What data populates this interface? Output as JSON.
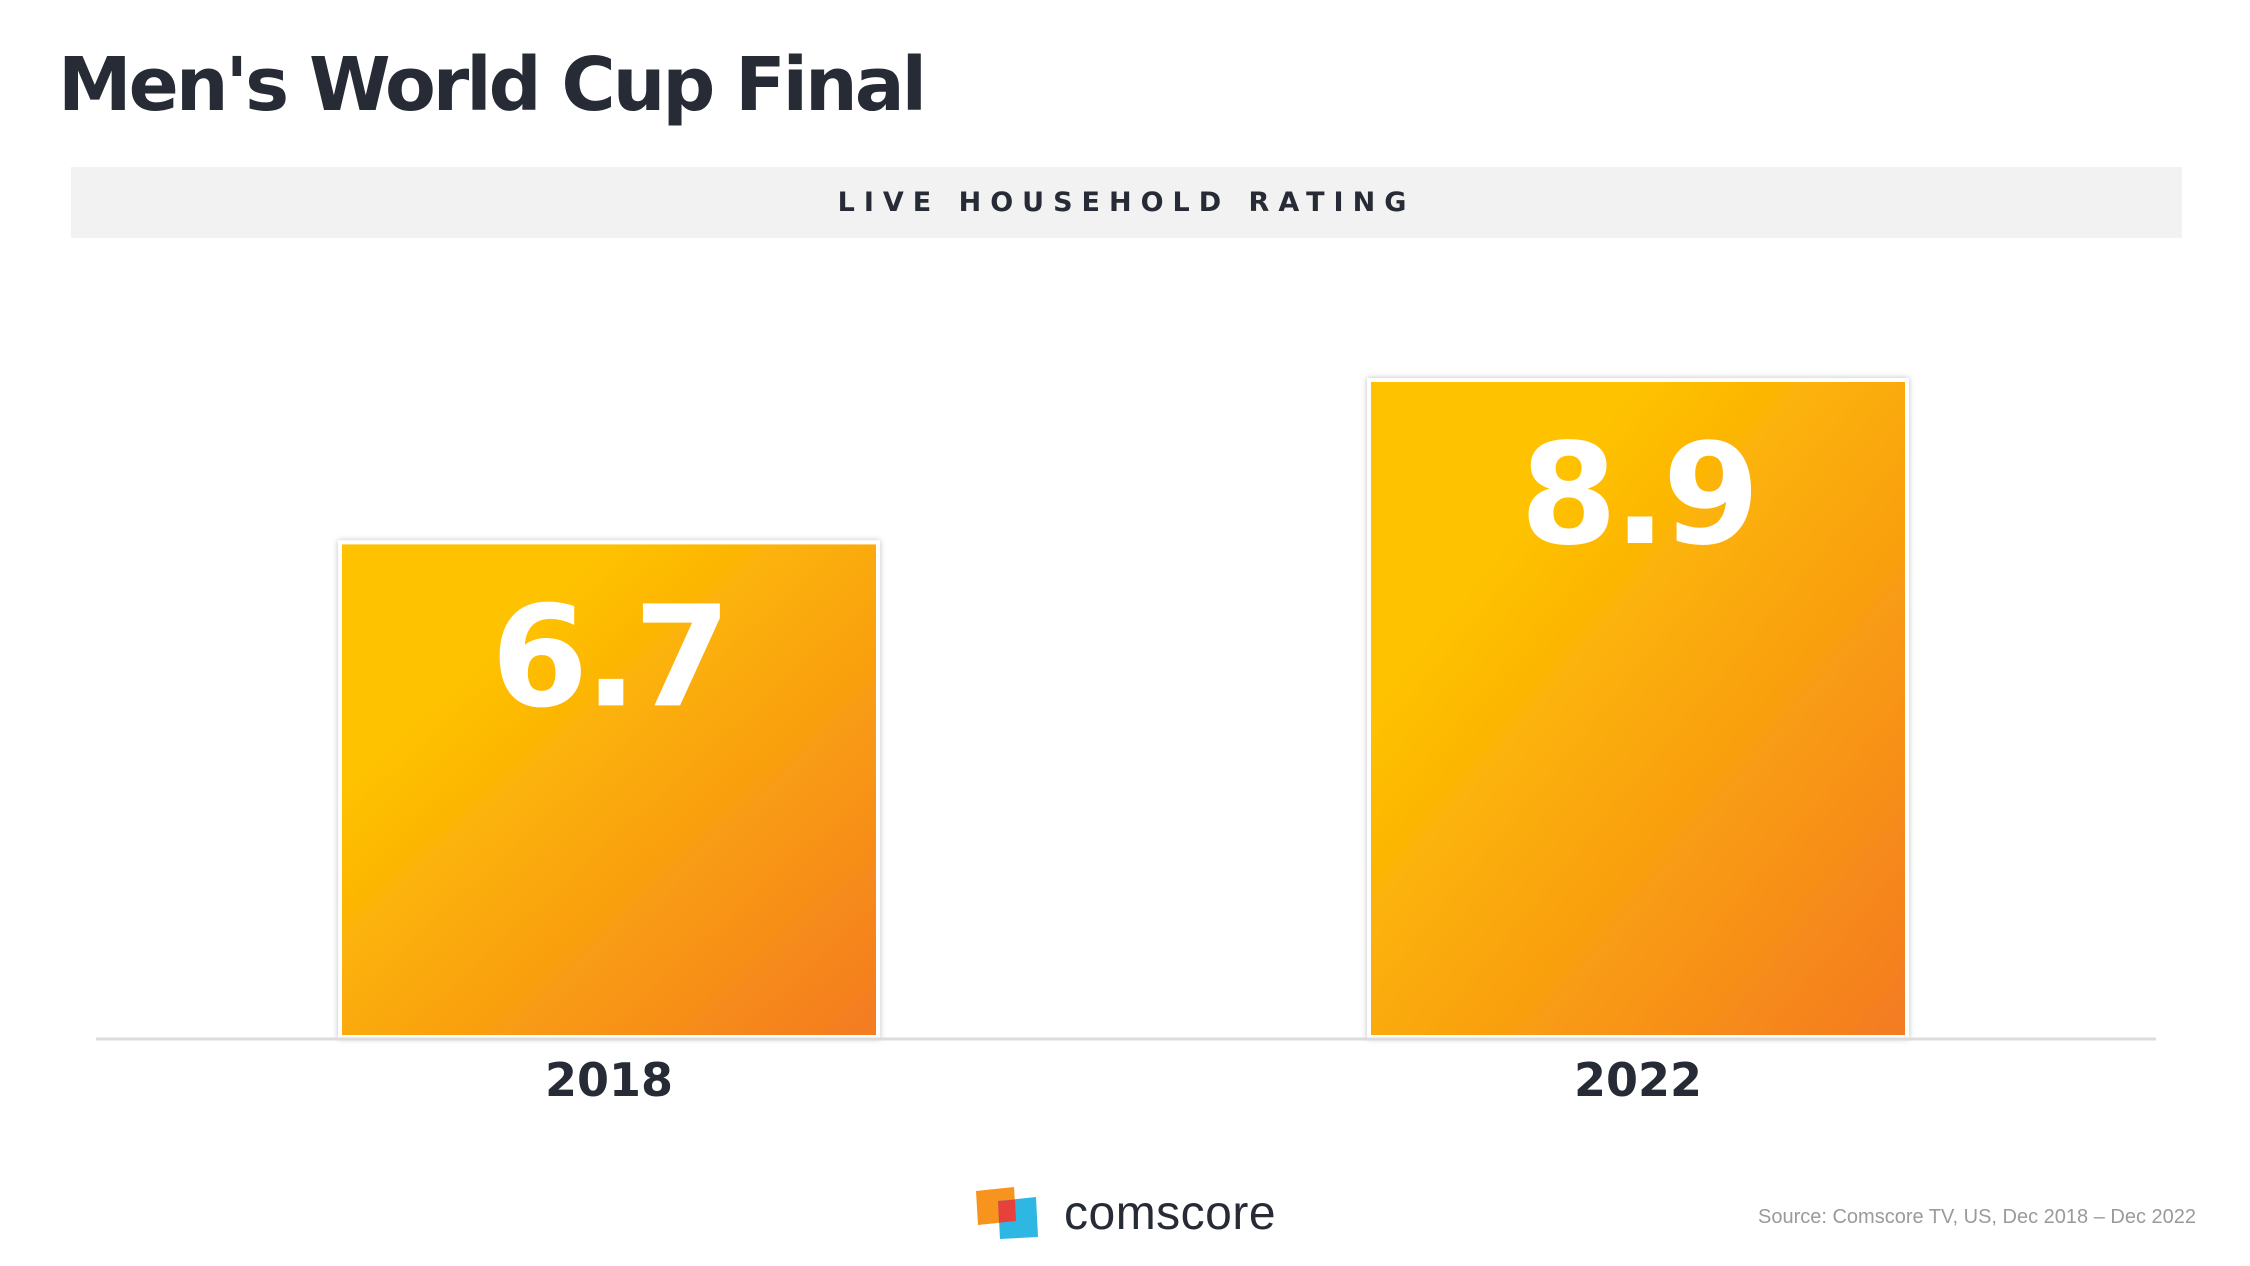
{
  "title": "Men's World Cup Final",
  "subtitle": "LIVE HOUSEHOLD RATING",
  "brand": {
    "name": "comscore",
    "icon": "comscore-logo-icon"
  },
  "source": "Source: Comscore TV, US, Dec 2018 – Dec 2022",
  "colors": {
    "bar_gradient_start": "#fec200",
    "bar_gradient_end": "#f47a22",
    "text_dark": "#262b36",
    "subtitle_band": "#f2f2f2",
    "logo_orange": "#f7941d",
    "logo_red": "#e8413c",
    "logo_blue": "#2fb7e4"
  },
  "chart_data": {
    "type": "bar",
    "title": "Men's World Cup Final",
    "subtitle": "LIVE HOUSEHOLD RATING",
    "categories": [
      "2018",
      "2022"
    ],
    "values": [
      6.7,
      8.9
    ],
    "value_labels": [
      "6.7",
      "8.9"
    ],
    "xlabel": "",
    "ylabel": "",
    "ylim": [
      0,
      8.9
    ],
    "grid": false,
    "legend": "none"
  }
}
